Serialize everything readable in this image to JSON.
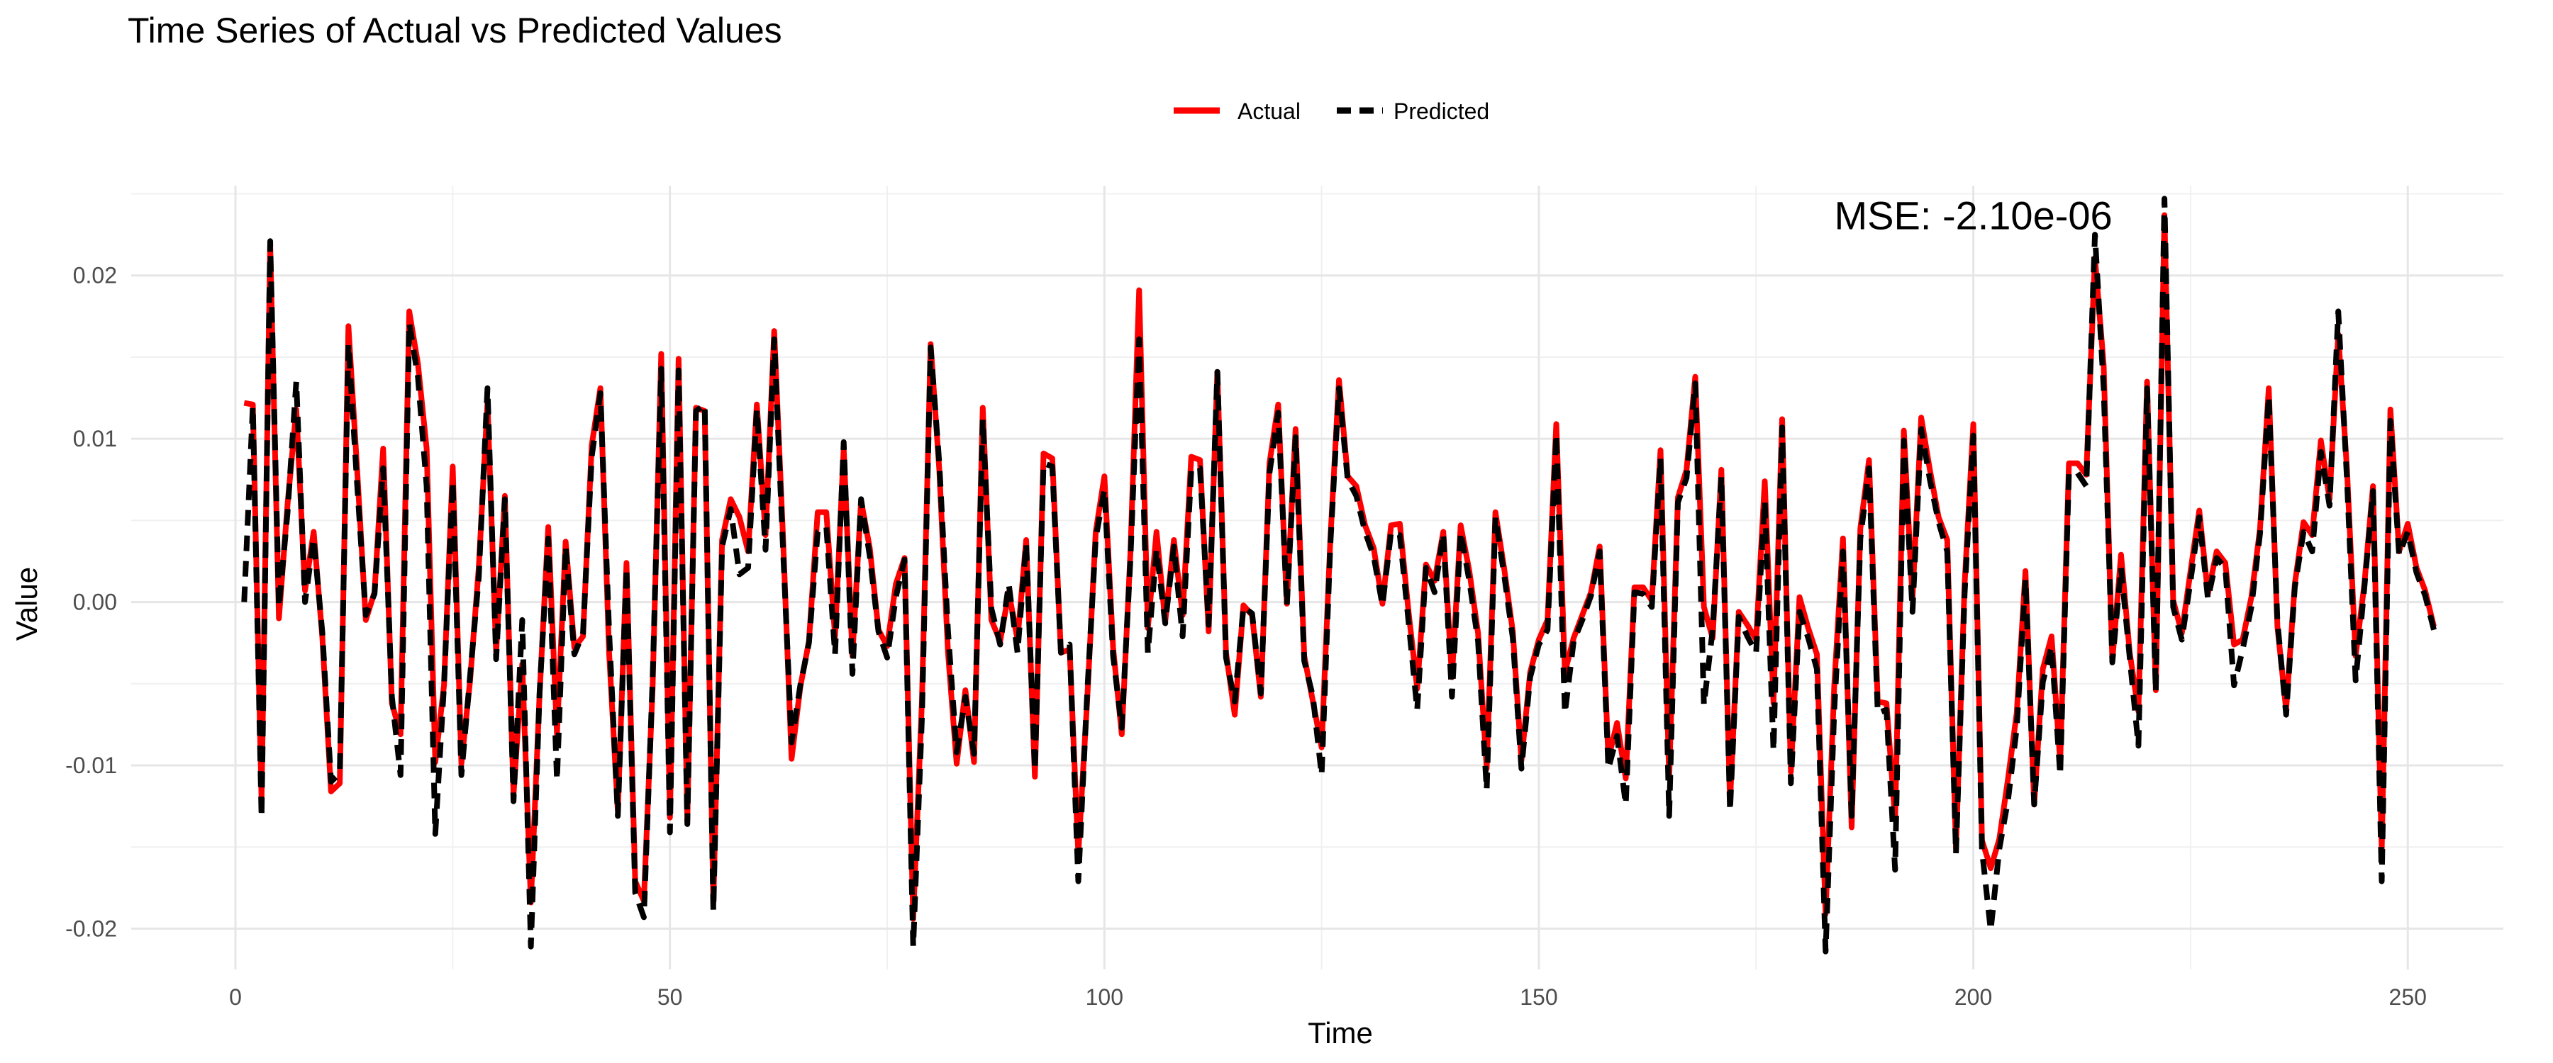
{
  "chart_data": {
    "type": "line",
    "title": "Time Series of Actual vs Predicted Values",
    "xlabel": "Time",
    "ylabel": "Value",
    "xlim": [
      -12,
      261
    ],
    "ylim": [
      -0.0225,
      0.0255
    ],
    "x_ticks": [
      0,
      50,
      100,
      150,
      200,
      250
    ],
    "y_ticks": [
      -0.02,
      -0.01,
      0.0,
      0.01,
      0.02
    ],
    "x_tick_labels": [
      "0",
      "50",
      "100",
      "150",
      "200",
      "250"
    ],
    "y_tick_labels": [
      "-0.02",
      "-0.01",
      "0.00",
      "0.01",
      "0.02"
    ],
    "grid": true,
    "legend_position": "top",
    "annotation": "MSE: -2.10e-06",
    "annotation_x": 200,
    "annotation_y": 0.0237,
    "series": [
      {
        "name": "Actual",
        "color": "#ff0000",
        "linestyle": "solid",
        "values": [
          0.0122,
          0.0121,
          -0.0121,
          0.0219,
          -0.001,
          0.006,
          0.0118,
          0.0007,
          0.0043,
          -0.0022,
          -0.0116,
          -0.0111,
          0.0169,
          0.0081,
          -0.0011,
          0.0006,
          0.0094,
          -0.0062,
          -0.0081,
          0.0178,
          0.0146,
          0.0094,
          -0.0098,
          -0.0051,
          0.0083,
          -0.0099,
          -0.0048,
          0.0021,
          0.0122,
          -0.0031,
          0.0065,
          -0.0118,
          -0.0038,
          -0.0184,
          -0.0056,
          0.0046,
          -0.0081,
          0.0037,
          -0.0028,
          -0.0021,
          0.0096,
          0.0131,
          -0.0031,
          -0.0128,
          0.0024,
          -0.0171,
          -0.0183,
          -0.0053,
          0.0152,
          -0.0132,
          0.0149,
          -0.0134,
          0.0119,
          0.0117,
          -0.0185,
          0.0038,
          0.0063,
          0.0052,
          0.0031,
          0.0121,
          0.0041,
          0.0166,
          0.0041,
          -0.0096,
          -0.0052,
          -0.0024,
          0.0055,
          0.0055,
          -0.0021,
          0.0094,
          -0.0033,
          0.0062,
          0.0033,
          -0.0017,
          -0.0027,
          0.0011,
          0.0027,
          -0.0194,
          -0.0061,
          0.0158,
          0.0081,
          -0.0031,
          -0.0099,
          -0.0054,
          -0.0098,
          0.0119,
          -0.0011,
          -0.0024,
          0.0006,
          -0.0023,
          0.0038,
          -0.0107,
          0.0091,
          0.0088,
          -0.0031,
          -0.0029,
          -0.0154,
          -0.0062,
          0.0043,
          0.0077,
          -0.0028,
          -0.0081,
          0.0031,
          0.0191,
          -0.0016,
          0.0043,
          -0.0012,
          0.0038,
          -0.0008,
          0.0089,
          0.0087,
          -0.0018,
          0.0141,
          -0.0031,
          -0.0069,
          -0.0002,
          -0.0008,
          -0.0058,
          0.0085,
          0.0121,
          -0.0001,
          0.0106,
          -0.0033,
          -0.0061,
          -0.0089,
          0.0038,
          0.0136,
          0.0077,
          0.0071,
          0.0047,
          0.0033,
          -0.0001,
          0.0047,
          0.0048,
          -0.0006,
          -0.0053,
          0.0023,
          0.0013,
          0.0043,
          -0.0046,
          0.0047,
          0.0019,
          -0.0019,
          -0.0102,
          0.0055,
          0.0021,
          -0.0018,
          -0.0097,
          -0.0043,
          -0.0023,
          -0.0011,
          0.0109,
          -0.0043,
          -0.0022,
          -0.0008,
          0.0006,
          0.0034,
          -0.0096,
          -0.0074,
          -0.0108,
          0.0009,
          0.0009,
          0.0001,
          0.0093,
          -0.0108,
          0.0064,
          0.0081,
          0.0138,
          -0.0003,
          -0.0022,
          0.0081,
          -0.0123,
          -0.0006,
          -0.0014,
          -0.0023,
          0.0074,
          -0.0062,
          0.0112,
          -0.0104,
          0.0003,
          -0.0016,
          -0.0032,
          -0.0191,
          -0.0051,
          0.0039,
          -0.0138,
          0.0045,
          0.0087,
          -0.0061,
          -0.0062,
          -0.0133,
          0.0105,
          0.0002,
          0.0113,
          0.0081,
          0.0052,
          0.0038,
          -0.0151,
          0.0011,
          0.0109,
          -0.0146,
          -0.0163,
          -0.0145,
          -0.0108,
          -0.0068,
          0.0019,
          -0.0124,
          -0.0041,
          -0.0021,
          -0.0098,
          0.0085,
          0.0085,
          0.0078,
          0.0211,
          0.0145,
          -0.0036,
          0.0029,
          -0.0031,
          -0.0067,
          0.0135,
          -0.0054,
          0.0237,
          0.0001,
          -0.0019,
          0.0019,
          0.0056,
          0.0005,
          0.0031,
          0.0024,
          -0.0026,
          -0.0023,
          0.0003,
          0.0045,
          0.0131,
          -0.0015,
          -0.0066,
          0.0011,
          0.0049,
          0.0041,
          0.0099,
          0.0063,
          0.0164,
          0.0081,
          -0.0033,
          0.0011,
          0.0071,
          -0.0152,
          0.0118,
          0.0031,
          0.0048,
          0.0021,
          0.0007,
          -0.0015
        ],
        "x_start": 1
      },
      {
        "name": "Predicted",
        "color": "#000000",
        "linestyle": "dashed",
        "values": [
          0.0,
          0.012,
          -0.0132,
          0.0221,
          -0.0003,
          0.0055,
          0.0135,
          0.0,
          0.0039,
          -0.0019,
          -0.011,
          -0.0105,
          0.0158,
          0.0072,
          -0.0008,
          0.0005,
          0.0082,
          -0.0058,
          -0.0106,
          0.0171,
          0.0138,
          0.0071,
          -0.0142,
          -0.0051,
          0.0074,
          -0.0106,
          -0.0045,
          0.0015,
          0.0131,
          -0.0035,
          0.0063,
          -0.0122,
          -0.0011,
          -0.0211,
          -0.0055,
          0.0039,
          -0.0109,
          0.0034,
          -0.0032,
          -0.0019,
          0.0089,
          0.0128,
          -0.0018,
          -0.0131,
          0.0021,
          -0.0178,
          -0.0193,
          -0.0048,
          0.0143,
          -0.0141,
          0.0142,
          -0.0136,
          0.0117,
          0.0121,
          -0.0189,
          0.0034,
          0.0057,
          0.0017,
          0.0021,
          0.0118,
          0.0032,
          0.0161,
          0.0034,
          -0.0086,
          -0.0051,
          -0.0025,
          0.0043,
          0.0046,
          -0.0032,
          0.0098,
          -0.0044,
          0.0063,
          0.0028,
          -0.0018,
          -0.0034,
          0.0003,
          0.0026,
          -0.0211,
          -0.0071,
          0.0156,
          0.0085,
          -0.0018,
          -0.0092,
          -0.0058,
          -0.0093,
          0.0112,
          -0.0004,
          -0.0026,
          0.0011,
          -0.0031,
          0.0036,
          -0.0103,
          0.0085,
          0.0083,
          -0.0031,
          -0.0026,
          -0.0171,
          -0.0058,
          0.0039,
          0.0069,
          -0.0033,
          -0.0077,
          0.0027,
          0.0161,
          -0.0031,
          0.0032,
          -0.0013,
          0.0034,
          -0.0021,
          0.0081,
          0.0082,
          -0.0014,
          0.0141,
          -0.0034,
          -0.0061,
          -0.0003,
          -0.0007,
          -0.0056,
          0.0079,
          0.0116,
          -0.0002,
          0.0101,
          -0.0036,
          -0.0058,
          -0.0106,
          0.0035,
          0.0131,
          0.0075,
          0.0065,
          0.0043,
          0.0028,
          -0.0002,
          0.0043,
          0.0041,
          -0.0012,
          -0.0066,
          0.0021,
          0.0006,
          0.0042,
          -0.0058,
          0.0043,
          0.0013,
          -0.0024,
          -0.0115,
          0.0052,
          0.0017,
          -0.0022,
          -0.0102,
          -0.0046,
          -0.0026,
          -0.0017,
          0.0103,
          -0.0068,
          -0.0024,
          -0.0011,
          0.0004,
          0.0031,
          -0.0102,
          -0.0082,
          -0.0124,
          0.0006,
          0.0005,
          -0.0003,
          0.0088,
          -0.0131,
          0.0061,
          0.0076,
          0.0134,
          -0.0063,
          -0.0017,
          0.0077,
          -0.0128,
          -0.0009,
          -0.0021,
          -0.0031,
          0.0062,
          -0.0091,
          0.0107,
          -0.0111,
          -0.0006,
          -0.0022,
          -0.0041,
          -0.0214,
          -0.0066,
          0.0031,
          -0.0131,
          0.0039,
          0.0082,
          -0.0068,
          -0.0066,
          -0.0164,
          0.0099,
          -0.0006,
          0.0106,
          0.0075,
          0.0049,
          0.0031,
          -0.0154,
          0.0005,
          0.0102,
          -0.0152,
          -0.0201,
          -0.0151,
          -0.0121,
          -0.0077,
          0.0014,
          -0.0124,
          -0.0049,
          -0.0027,
          -0.0106,
          0.0079,
          0.0079,
          0.0071,
          0.0225,
          0.0131,
          -0.0037,
          0.0021,
          -0.0034,
          -0.0088,
          0.0131,
          -0.0055,
          0.0247,
          -0.0003,
          -0.0023,
          0.0013,
          0.0052,
          0.0002,
          0.0027,
          0.0021,
          -0.0051,
          -0.0029,
          -0.0003,
          0.0042,
          0.0126,
          -0.0012,
          -0.0069,
          0.0009,
          0.0043,
          0.0031,
          0.0092,
          0.0059,
          0.0178,
          0.0075,
          -0.0048,
          0.0009,
          0.0068,
          -0.0171,
          0.0111,
          0.0029,
          0.0043,
          0.0018,
          0.0004,
          -0.0017
        ],
        "x_start": 1
      }
    ]
  }
}
